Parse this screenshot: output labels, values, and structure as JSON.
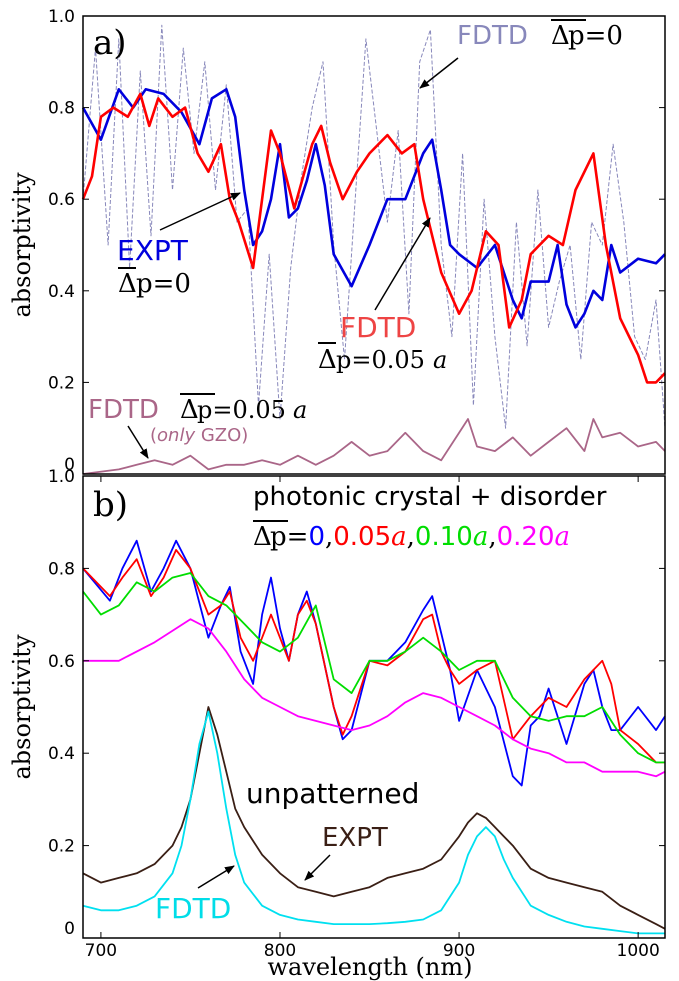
{
  "chart_data": [
    {
      "panel": "a)",
      "type": "line",
      "xlim": [
        690,
        1015
      ],
      "ylim": [
        0,
        1.0
      ],
      "xlabel": "",
      "ylabel": "absorptivity",
      "yticks": [
        "0",
        "0.2",
        "0.4",
        "0.6",
        "0.8",
        "1.0"
      ],
      "grid": false,
      "annotations": {
        "fdtd_ordered": {
          "name": "FDTD",
          "expr": "p=0"
        },
        "expt": {
          "name": "EXPT",
          "expr": "p=0"
        },
        "fdtd_disorder": {
          "name": "FDTD",
          "expr": "p=0.05",
          "italic": "a"
        },
        "gzo": {
          "name": "FDTD",
          "expr": "p=0.05",
          "italic": "a",
          "sub_a": "(",
          "sub_b": "only",
          "sub_c": " GZO)"
        }
      },
      "series": [
        {
          "color": "#8888bb",
          "dashed": true,
          "x": [
            690,
            697,
            704,
            710,
            716,
            722,
            728,
            734,
            740,
            746,
            752,
            758,
            764,
            770,
            776,
            782,
            788,
            794,
            800,
            806,
            812,
            818,
            824,
            830,
            836,
            842,
            848,
            854,
            860,
            866,
            872,
            878,
            884,
            890,
            896,
            902,
            908,
            914,
            920,
            926,
            932,
            938,
            944,
            950,
            956,
            962,
            968,
            974,
            980,
            986,
            992,
            998,
            1004,
            1010,
            1015
          ],
          "y": [
            0.6,
            0.93,
            0.5,
            0.95,
            0.45,
            0.88,
            0.52,
            0.98,
            0.62,
            0.93,
            0.7,
            0.9,
            0.62,
            0.85,
            0.55,
            0.58,
            0.15,
            0.48,
            0.12,
            0.45,
            0.65,
            0.8,
            0.9,
            0.5,
            0.25,
            0.6,
            0.95,
            0.75,
            0.55,
            0.75,
            0.35,
            0.9,
            0.97,
            0.5,
            0.3,
            0.7,
            0.15,
            0.6,
            0.3,
            0.1,
            0.55,
            0.28,
            0.62,
            0.32,
            0.42,
            0.5,
            0.25,
            0.55,
            0.5,
            0.72,
            0.55,
            0.3,
            0.25,
            0.38,
            0.1
          ]
        },
        {
          "name": "EXPT",
          "color": "#0000dd",
          "x": [
            690,
            700,
            710,
            718,
            725,
            735,
            745,
            755,
            762,
            770,
            775,
            780,
            785,
            790,
            795,
            800,
            805,
            810,
            815,
            820,
            825,
            830,
            840,
            850,
            860,
            870,
            880,
            885,
            890,
            895,
            900,
            910,
            920,
            930,
            935,
            940,
            945,
            950,
            955,
            960,
            965,
            970,
            975,
            980,
            985,
            990,
            1000,
            1010,
            1015
          ],
          "y": [
            0.8,
            0.73,
            0.84,
            0.8,
            0.84,
            0.83,
            0.79,
            0.72,
            0.82,
            0.84,
            0.78,
            0.62,
            0.5,
            0.53,
            0.6,
            0.72,
            0.56,
            0.58,
            0.64,
            0.72,
            0.63,
            0.48,
            0.41,
            0.5,
            0.6,
            0.6,
            0.7,
            0.73,
            0.62,
            0.5,
            0.48,
            0.45,
            0.5,
            0.38,
            0.34,
            0.42,
            0.42,
            0.42,
            0.5,
            0.37,
            0.32,
            0.35,
            0.4,
            0.38,
            0.5,
            0.44,
            0.47,
            0.46,
            0.48
          ]
        },
        {
          "name": "FDTD",
          "color": "#ff0000",
          "x": [
            690,
            695,
            700,
            707,
            715,
            722,
            727,
            732,
            740,
            747,
            754,
            760,
            767,
            772,
            777,
            785,
            790,
            795,
            800,
            808,
            818,
            823,
            828,
            835,
            843,
            850,
            860,
            868,
            875,
            880,
            890,
            900,
            907,
            915,
            922,
            928,
            935,
            940,
            945,
            950,
            958,
            965,
            975,
            982,
            990,
            1000,
            1005,
            1010,
            1015
          ],
          "y": [
            0.6,
            0.65,
            0.78,
            0.8,
            0.78,
            0.83,
            0.76,
            0.82,
            0.78,
            0.8,
            0.7,
            0.66,
            0.72,
            0.6,
            0.55,
            0.45,
            0.6,
            0.75,
            0.7,
            0.58,
            0.72,
            0.76,
            0.68,
            0.6,
            0.66,
            0.7,
            0.74,
            0.7,
            0.72,
            0.6,
            0.44,
            0.35,
            0.4,
            0.53,
            0.5,
            0.32,
            0.38,
            0.48,
            0.5,
            0.52,
            0.5,
            0.62,
            0.7,
            0.5,
            0.34,
            0.26,
            0.2,
            0.2,
            0.22
          ]
        },
        {
          "name": "FDTD",
          "color": "#aa6688",
          "x": [
            690,
            710,
            720,
            730,
            740,
            750,
            760,
            770,
            780,
            790,
            800,
            810,
            820,
            830,
            840,
            850,
            860,
            870,
            880,
            890,
            900,
            905,
            910,
            920,
            930,
            940,
            950,
            960,
            970,
            975,
            980,
            990,
            1000,
            1010,
            1015
          ],
          "y": [
            0.0,
            0.01,
            0.02,
            0.03,
            0.02,
            0.04,
            0.01,
            0.02,
            0.02,
            0.03,
            0.02,
            0.04,
            0.02,
            0.04,
            0.07,
            0.04,
            0.05,
            0.09,
            0.05,
            0.03,
            0.09,
            0.12,
            0.06,
            0.05,
            0.08,
            0.04,
            0.07,
            0.1,
            0.05,
            0.12,
            0.08,
            0.09,
            0.06,
            0.07,
            0.05
          ]
        }
      ]
    },
    {
      "panel": "b)",
      "type": "line",
      "xlim": [
        690,
        1015
      ],
      "ylim": [
        0,
        1.0
      ],
      "xlabel": "wavelength (nm)",
      "ylabel": "absorptivity",
      "xticks": [
        "700",
        "800",
        "900",
        "1000"
      ],
      "yticks": [
        "0",
        "0.2",
        "0.4",
        "0.6",
        "0.8",
        "1.0"
      ],
      "grid": false,
      "title": "photonic crystal + disorder",
      "legend_prefix": "p=",
      "legend_values": [
        {
          "text": "0",
          "color": "#0000ff",
          "italic": ""
        },
        {
          "text": "0.05",
          "color": "#ff0000",
          "italic": "a"
        },
        {
          "text": "0.10",
          "color": "#00dd00",
          "italic": "a"
        },
        {
          "text": "0.20",
          "color": "#ff00ff",
          "italic": "a"
        }
      ],
      "annotations": {
        "unpatterned": "unpatterned",
        "expt": "EXPT",
        "fdtd": "FDTD"
      },
      "series": [
        {
          "color": "#0000ff",
          "x": [
            690,
            705,
            712,
            720,
            728,
            735,
            742,
            750,
            760,
            767,
            772,
            778,
            785,
            790,
            795,
            800,
            805,
            810,
            815,
            820,
            830,
            835,
            840,
            850,
            860,
            870,
            880,
            885,
            890,
            895,
            900,
            910,
            920,
            930,
            935,
            940,
            945,
            950,
            960,
            970,
            975,
            980,
            985,
            990,
            1000,
            1010,
            1015
          ],
          "y": [
            0.8,
            0.73,
            0.8,
            0.86,
            0.75,
            0.8,
            0.86,
            0.8,
            0.65,
            0.72,
            0.76,
            0.62,
            0.55,
            0.7,
            0.78,
            0.67,
            0.6,
            0.7,
            0.75,
            0.68,
            0.5,
            0.43,
            0.45,
            0.6,
            0.6,
            0.64,
            0.71,
            0.74,
            0.66,
            0.58,
            0.47,
            0.58,
            0.5,
            0.35,
            0.33,
            0.46,
            0.48,
            0.54,
            0.42,
            0.55,
            0.58,
            0.5,
            0.45,
            0.45,
            0.5,
            0.45,
            0.48
          ]
        },
        {
          "color": "#ff0000",
          "x": [
            690,
            705,
            712,
            720,
            728,
            735,
            742,
            750,
            760,
            767,
            772,
            778,
            785,
            790,
            795,
            800,
            805,
            810,
            815,
            820,
            830,
            835,
            840,
            850,
            860,
            870,
            880,
            885,
            890,
            895,
            900,
            910,
            920,
            930,
            940,
            950,
            960,
            970,
            980,
            985,
            990,
            1000,
            1010,
            1015
          ],
          "y": [
            0.8,
            0.74,
            0.78,
            0.82,
            0.74,
            0.78,
            0.84,
            0.8,
            0.7,
            0.72,
            0.75,
            0.65,
            0.6,
            0.65,
            0.7,
            0.65,
            0.6,
            0.7,
            0.73,
            0.68,
            0.5,
            0.44,
            0.48,
            0.6,
            0.59,
            0.62,
            0.69,
            0.7,
            0.62,
            0.58,
            0.55,
            0.58,
            0.6,
            0.43,
            0.48,
            0.52,
            0.5,
            0.56,
            0.6,
            0.55,
            0.45,
            0.42,
            0.38,
            0.38
          ]
        },
        {
          "color": "#00dd00",
          "x": [
            690,
            700,
            710,
            720,
            730,
            740,
            750,
            760,
            770,
            780,
            790,
            800,
            810,
            820,
            830,
            840,
            850,
            860,
            870,
            880,
            890,
            900,
            910,
            920,
            930,
            940,
            950,
            960,
            970,
            980,
            990,
            1000,
            1010,
            1015
          ],
          "y": [
            0.75,
            0.7,
            0.72,
            0.77,
            0.75,
            0.78,
            0.79,
            0.74,
            0.72,
            0.68,
            0.64,
            0.62,
            0.65,
            0.72,
            0.56,
            0.53,
            0.6,
            0.6,
            0.62,
            0.65,
            0.62,
            0.58,
            0.6,
            0.6,
            0.52,
            0.48,
            0.47,
            0.48,
            0.48,
            0.5,
            0.44,
            0.4,
            0.38,
            0.38
          ]
        },
        {
          "color": "#ff00ff",
          "x": [
            690,
            710,
            730,
            750,
            760,
            770,
            780,
            790,
            800,
            810,
            820,
            830,
            840,
            850,
            860,
            870,
            880,
            890,
            900,
            910,
            920,
            930,
            940,
            950,
            960,
            970,
            980,
            990,
            1000,
            1010,
            1015
          ],
          "y": [
            0.6,
            0.6,
            0.64,
            0.69,
            0.67,
            0.62,
            0.56,
            0.52,
            0.5,
            0.48,
            0.47,
            0.46,
            0.45,
            0.46,
            0.48,
            0.51,
            0.53,
            0.52,
            0.5,
            0.48,
            0.46,
            0.43,
            0.41,
            0.4,
            0.38,
            0.38,
            0.36,
            0.36,
            0.36,
            0.35,
            0.36
          ]
        },
        {
          "name": "EXPT",
          "color": "#3a1f15",
          "x": [
            690,
            700,
            710,
            720,
            730,
            740,
            745,
            750,
            755,
            760,
            765,
            770,
            775,
            780,
            790,
            800,
            810,
            820,
            830,
            840,
            850,
            860,
            870,
            880,
            890,
            900,
            905,
            910,
            915,
            920,
            925,
            930,
            940,
            950,
            960,
            970,
            980,
            990,
            1000,
            1010,
            1015
          ],
          "y": [
            0.14,
            0.12,
            0.13,
            0.14,
            0.16,
            0.2,
            0.24,
            0.3,
            0.4,
            0.5,
            0.44,
            0.36,
            0.28,
            0.24,
            0.18,
            0.14,
            0.11,
            0.1,
            0.09,
            0.1,
            0.11,
            0.13,
            0.14,
            0.15,
            0.17,
            0.22,
            0.25,
            0.27,
            0.26,
            0.24,
            0.22,
            0.2,
            0.15,
            0.13,
            0.12,
            0.11,
            0.1,
            0.07,
            0.05,
            0.03,
            0.02
          ]
        },
        {
          "name": "FDTD",
          "color": "#00e0f0",
          "x": [
            690,
            700,
            710,
            720,
            730,
            740,
            745,
            750,
            755,
            760,
            765,
            770,
            775,
            780,
            790,
            800,
            810,
            820,
            830,
            840,
            850,
            860,
            870,
            880,
            890,
            900,
            905,
            910,
            915,
            920,
            925,
            930,
            940,
            950,
            960,
            970,
            980,
            990,
            1000,
            1010,
            1015
          ],
          "y": [
            0.07,
            0.06,
            0.06,
            0.07,
            0.09,
            0.14,
            0.2,
            0.3,
            0.42,
            0.49,
            0.4,
            0.28,
            0.18,
            0.12,
            0.07,
            0.05,
            0.04,
            0.035,
            0.03,
            0.03,
            0.03,
            0.032,
            0.035,
            0.04,
            0.06,
            0.12,
            0.18,
            0.22,
            0.24,
            0.22,
            0.17,
            0.13,
            0.07,
            0.05,
            0.035,
            0.025,
            0.02,
            0.015,
            0.01,
            0.01,
            0.01
          ]
        }
      ]
    }
  ]
}
